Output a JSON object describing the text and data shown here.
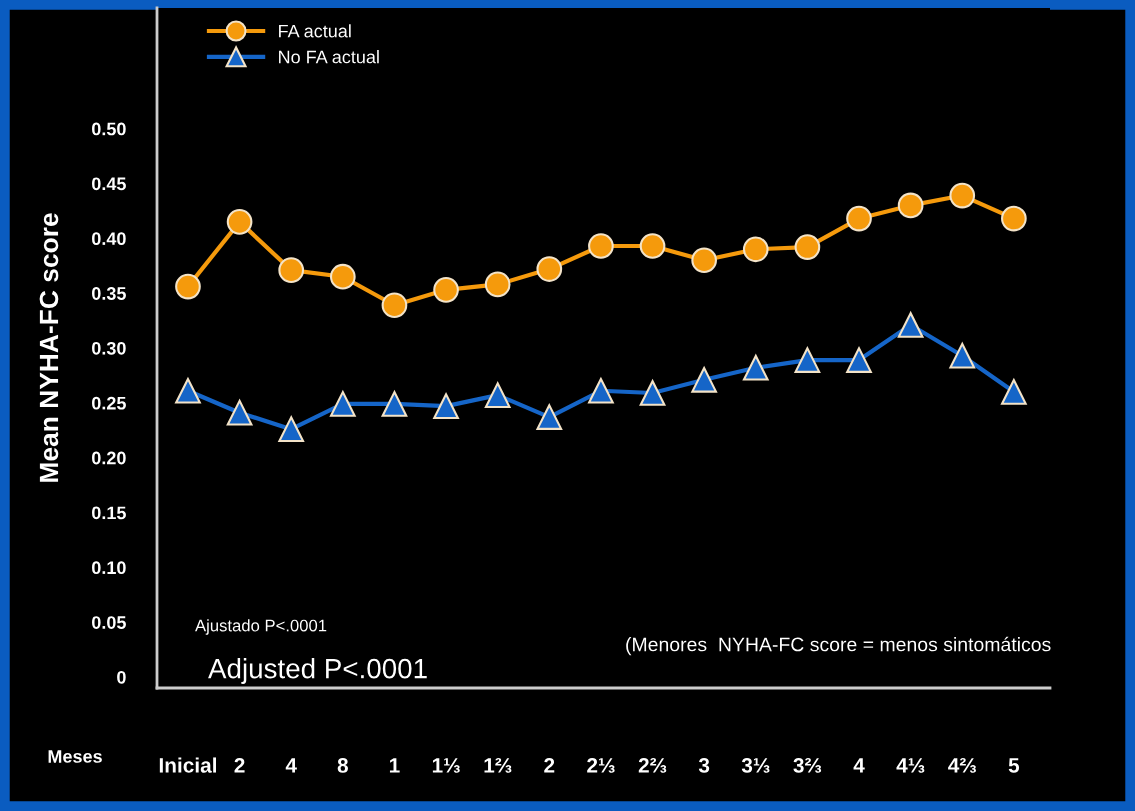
{
  "chart_data": {
    "type": "line",
    "categories": [
      "Inicial",
      "2",
      "4",
      "8",
      "1",
      "1⅓",
      "1⅔",
      "2",
      "2⅓",
      "2⅔",
      "3",
      "3⅓",
      "3⅔",
      "4",
      "4⅓",
      "4⅔",
      "5"
    ],
    "series": [
      {
        "name": "FA actual",
        "color": "#f59a0c",
        "marker": "circle",
        "values": [
          0.356,
          0.415,
          0.371,
          0.365,
          0.339,
          0.353,
          0.358,
          0.372,
          0.393,
          0.393,
          0.38,
          0.39,
          0.392,
          0.418,
          0.43,
          0.439,
          0.418
        ]
      },
      {
        "name": "No FA actual",
        "color": "#1565c8",
        "marker": "triangle",
        "values": [
          0.261,
          0.241,
          0.226,
          0.249,
          0.249,
          0.247,
          0.257,
          0.237,
          0.261,
          0.259,
          0.271,
          0.282,
          0.289,
          0.289,
          0.321,
          0.293,
          0.26
        ]
      }
    ],
    "ylabel": "Mean NYHA-FC score",
    "xlabel": "Meses",
    "ylim": [
      -0.01,
      0.61
    ],
    "yticks": [
      {
        "value": 0,
        "label": "0"
      },
      {
        "value": 0.05,
        "label": "0.05"
      },
      {
        "value": 0.1,
        "label": "0.10"
      },
      {
        "value": 0.15,
        "label": "0.15"
      },
      {
        "value": 0.2,
        "label": "0.20"
      },
      {
        "value": 0.25,
        "label": "0.25"
      },
      {
        "value": 0.3,
        "label": "0.30"
      },
      {
        "value": 0.35,
        "label": "0.35"
      },
      {
        "value": 0.4,
        "label": "0.40"
      },
      {
        "value": 0.45,
        "label": "0.45"
      },
      {
        "value": 0.5,
        "label": "0.50"
      }
    ],
    "annotations": [
      "Ajustado P<.0001",
      "Adjusted P<.0001",
      "(Menores  NYHA-FC score = menos sintomáticos"
    ],
    "legend": "top left",
    "grid": false
  }
}
